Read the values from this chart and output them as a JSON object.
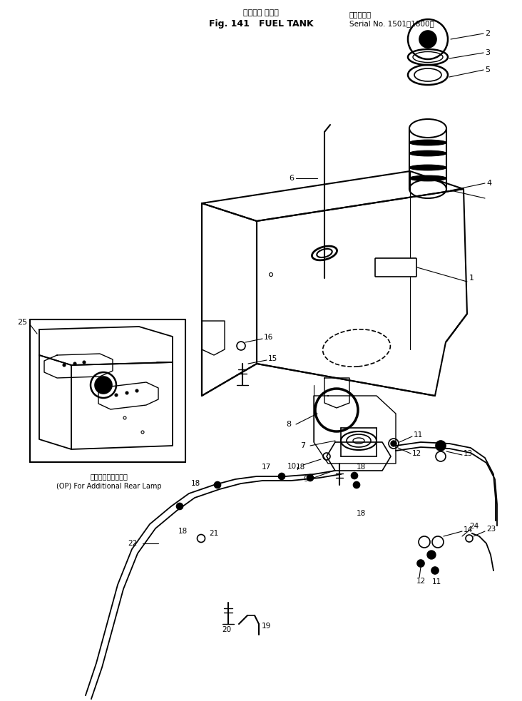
{
  "title_jp": "フェエル タンク",
  "title_bracket_jp": "（適用号機",
  "title_en": "Fig. 141   FUEL TANK",
  "serial": "Serial No. 1501－1800）",
  "bg_color": "#ffffff",
  "lc": "#000000",
  "figsize": [
    7.32,
    9.83
  ],
  "dpi": 100
}
